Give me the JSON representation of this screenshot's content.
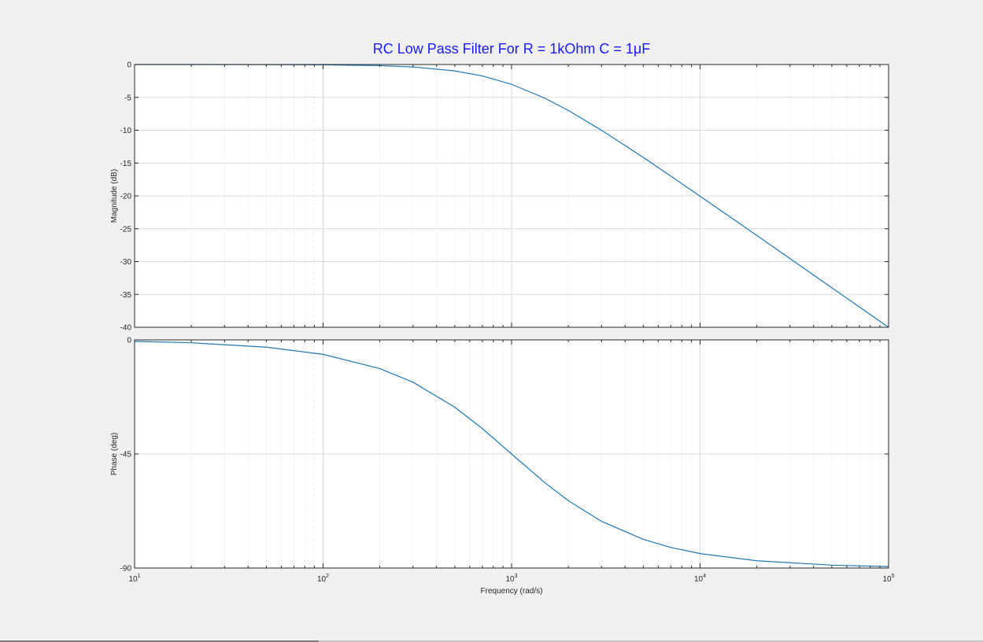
{
  "colors": {
    "background": "#f0f0f0",
    "plot_bg": "#ffffff",
    "line": "#1f77b4",
    "title": "#1a1aff",
    "grid_major": "#d9d9d9",
    "grid_minor": "#e6e6e6",
    "axis": "#262626"
  },
  "chart_data": [
    {
      "type": "line",
      "title": "RC Low Pass Filter For R = 1kOhm C = 1μF",
      "ylabel": "Magnitude (dB)",
      "xlabel": "",
      "xscale": "log",
      "xlim": [
        10,
        100000
      ],
      "ylim": [
        -40,
        0
      ],
      "yticks": [
        0,
        -5,
        -10,
        -15,
        -20,
        -25,
        -30,
        -35,
        -40
      ],
      "grid": true,
      "series": [
        {
          "x": [
            10,
            20,
            50,
            100,
            200,
            300,
            500,
            700,
            1000,
            1500,
            2000,
            3000,
            5000,
            7000,
            10000,
            20000,
            50000,
            100000
          ],
          "values": [
            0,
            -0.002,
            -0.011,
            -0.043,
            -0.17,
            -0.37,
            -0.97,
            -1.74,
            -3.01,
            -5.12,
            -6.99,
            -10.0,
            -14.15,
            -16.99,
            -20.04,
            -26.02,
            -33.98,
            -40.0
          ]
        }
      ]
    },
    {
      "type": "line",
      "title": "",
      "ylabel": "Phase (deg)",
      "xlabel": "Frequency  (rad/s)",
      "xscale": "log",
      "xlim": [
        10,
        100000
      ],
      "ylim": [
        -90,
        0
      ],
      "yticks": [
        0,
        -45,
        -90
      ],
      "xticks": [
        "10^1",
        "10^2",
        "10^3",
        "10^4",
        "10^5"
      ],
      "grid": true,
      "series": [
        {
          "x": [
            10,
            20,
            50,
            100,
            200,
            300,
            500,
            700,
            1000,
            1500,
            2000,
            3000,
            5000,
            7000,
            10000,
            20000,
            50000,
            100000
          ],
          "values": [
            -0.57,
            -1.15,
            -2.86,
            -5.71,
            -11.31,
            -16.7,
            -26.57,
            -34.99,
            -45.0,
            -56.31,
            -63.43,
            -71.57,
            -78.69,
            -81.87,
            -84.29,
            -87.14,
            -88.85,
            -89.43
          ]
        }
      ]
    }
  ]
}
